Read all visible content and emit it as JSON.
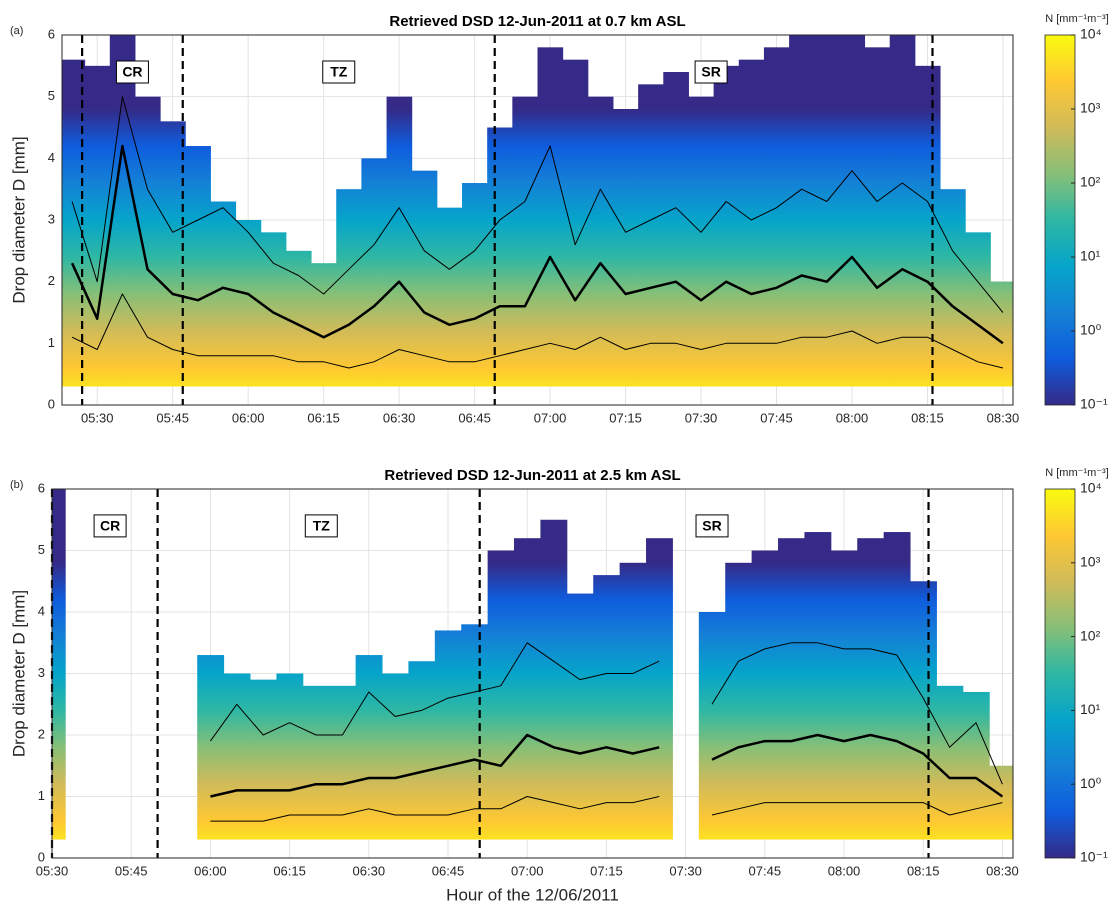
{
  "chart_data": [
    {
      "type": "heatmap",
      "panel_label": "(a)",
      "title": "Retrieved DSD 12-Jun-2011 at 0.7 km ASL",
      "ylabel": "Drop diameter D [mm]",
      "xlim": [
        "05:23",
        "08:32"
      ],
      "xticks": [
        "05:30",
        "05:45",
        "06:00",
        "06:15",
        "06:30",
        "06:45",
        "07:00",
        "07:15",
        "07:30",
        "07:45",
        "08:00",
        "08:15",
        "08:30"
      ],
      "ylim": [
        0,
        6
      ],
      "yticks": [
        0,
        1,
        2,
        3,
        4,
        5,
        6
      ],
      "grid": true,
      "min_diameter": 0.3,
      "x": [
        "05:25",
        "05:30",
        "05:35",
        "05:40",
        "05:45",
        "05:50",
        "05:55",
        "06:00",
        "06:05",
        "06:10",
        "06:15",
        "06:20",
        "06:25",
        "06:30",
        "06:35",
        "06:40",
        "06:45",
        "06:50",
        "06:55",
        "07:00",
        "07:05",
        "07:10",
        "07:15",
        "07:20",
        "07:25",
        "07:30",
        "07:35",
        "07:40",
        "07:45",
        "07:50",
        "07:55",
        "08:00",
        "08:05",
        "08:10",
        "08:15",
        "08:20",
        "08:25",
        "08:30"
      ],
      "max_diameter": [
        5.6,
        5.5,
        6.0,
        5.0,
        4.6,
        4.2,
        3.3,
        3.0,
        2.8,
        2.5,
        2.3,
        3.5,
        4.0,
        5.0,
        3.8,
        3.2,
        3.6,
        4.5,
        5.0,
        5.8,
        5.6,
        5.0,
        4.8,
        5.2,
        5.4,
        5.0,
        5.5,
        5.6,
        5.8,
        6.0,
        6.0,
        6.0,
        5.8,
        6.0,
        5.5,
        3.5,
        2.8,
        2.0
      ],
      "series": [
        {
          "line_width": 1,
          "color": "#000000",
          "values": [
            3.3,
            2.0,
            5.0,
            3.5,
            2.8,
            3.0,
            3.2,
            2.8,
            2.3,
            2.1,
            1.8,
            2.2,
            2.6,
            3.2,
            2.5,
            2.2,
            2.5,
            3.0,
            3.3,
            4.2,
            2.6,
            3.5,
            2.8,
            3.0,
            3.2,
            2.8,
            3.3,
            3.0,
            3.2,
            3.5,
            3.3,
            3.8,
            3.3,
            3.6,
            3.3,
            2.5,
            2.0,
            1.5
          ]
        },
        {
          "line_width": 2.5,
          "color": "#000000",
          "values": [
            2.3,
            1.4,
            4.2,
            2.2,
            1.8,
            1.7,
            1.9,
            1.8,
            1.5,
            1.3,
            1.1,
            1.3,
            1.6,
            2.0,
            1.5,
            1.3,
            1.4,
            1.6,
            1.6,
            2.4,
            1.7,
            2.3,
            1.8,
            1.9,
            2.0,
            1.7,
            2.0,
            1.8,
            1.9,
            2.1,
            2.0,
            2.4,
            1.9,
            2.2,
            2.0,
            1.6,
            1.3,
            1.0
          ]
        },
        {
          "line_width": 1,
          "color": "#000000",
          "values": [
            1.1,
            0.9,
            1.8,
            1.1,
            0.9,
            0.8,
            0.8,
            0.8,
            0.8,
            0.7,
            0.7,
            0.6,
            0.7,
            0.9,
            0.8,
            0.7,
            0.7,
            0.8,
            0.9,
            1.0,
            0.9,
            1.1,
            0.9,
            1.0,
            1.0,
            0.9,
            1.0,
            1.0,
            1.0,
            1.1,
            1.1,
            1.2,
            1.0,
            1.1,
            1.1,
            0.9,
            0.7,
            0.6
          ]
        }
      ],
      "vlines": [
        "05:27",
        "05:47",
        "06:49",
        "08:16"
      ],
      "annotations": [
        {
          "x": "05:37",
          "y": 5.4,
          "text": "CR"
        },
        {
          "x": "06:18",
          "y": 5.4,
          "text": "TZ"
        },
        {
          "x": "07:32",
          "y": 5.4,
          "text": "SR"
        }
      ],
      "colorbar": {
        "label": "N [mm⁻¹m⁻³]",
        "log": true,
        "ylim": [
          0.1,
          10000
        ],
        "yticks": [
          {
            "value": 0.1,
            "label": "10⁻¹"
          },
          {
            "value": 1,
            "label": "10⁰"
          },
          {
            "value": 10,
            "label": "10¹"
          },
          {
            "value": 100,
            "label": "10²"
          },
          {
            "value": 1000,
            "label": "10³"
          },
          {
            "value": 10000,
            "label": "10⁴"
          }
        ],
        "colors": [
          "#352a87",
          "#0f5cdd",
          "#1481d6",
          "#06a4ca",
          "#2eb7a4",
          "#87bf77",
          "#d1bb59",
          "#fec832",
          "#f9fb0e"
        ]
      }
    },
    {
      "type": "heatmap",
      "panel_label": "(b)",
      "title": "Retrieved DSD 12-Jun-2011 at 2.5 km ASL",
      "ylabel": "Drop diameter D [mm]",
      "xlabel": "Hour of the 12/06/2011",
      "xlim": [
        "05:30",
        "08:32"
      ],
      "xticks": [
        "05:30",
        "05:45",
        "06:00",
        "06:15",
        "06:30",
        "06:45",
        "07:00",
        "07:15",
        "07:30",
        "07:45",
        "08:00",
        "08:15",
        "08:30"
      ],
      "ylim": [
        0,
        6
      ],
      "yticks": [
        0,
        1,
        2,
        3,
        4,
        5,
        6
      ],
      "grid": true,
      "min_diameter": 0.3,
      "x": [
        "05:30",
        "05:35",
        "05:40",
        "05:45",
        "05:50",
        "05:55",
        "06:00",
        "06:05",
        "06:10",
        "06:15",
        "06:20",
        "06:25",
        "06:30",
        "06:35",
        "06:40",
        "06:45",
        "06:50",
        "06:55",
        "07:00",
        "07:05",
        "07:10",
        "07:15",
        "07:20",
        "07:25",
        "07:30",
        "07:35",
        "07:40",
        "07:45",
        "07:50",
        "07:55",
        "08:00",
        "08:05",
        "08:10",
        "08:15",
        "08:20",
        "08:25",
        "08:30"
      ],
      "max_diameter": [
        6.0,
        null,
        null,
        null,
        null,
        null,
        3.3,
        3.0,
        2.9,
        3.0,
        2.8,
        2.8,
        3.3,
        3.0,
        3.2,
        3.7,
        3.8,
        5.0,
        5.2,
        5.5,
        4.3,
        4.6,
        4.8,
        5.2,
        null,
        4.0,
        4.8,
        5.0,
        5.2,
        5.3,
        5.0,
        5.2,
        5.3,
        4.5,
        2.8,
        2.7,
        1.5
      ],
      "series": [
        {
          "line_width": 1,
          "color": "#000000",
          "values": [
            null,
            null,
            null,
            null,
            null,
            null,
            1.9,
            2.5,
            2.0,
            2.2,
            2.0,
            2.0,
            2.7,
            2.3,
            2.4,
            2.6,
            2.7,
            2.8,
            3.5,
            3.2,
            2.9,
            3.0,
            3.0,
            3.2,
            null,
            2.5,
            3.2,
            3.4,
            3.5,
            3.5,
            3.4,
            3.4,
            3.3,
            2.6,
            1.8,
            2.2,
            1.2
          ]
        },
        {
          "line_width": 2.5,
          "color": "#000000",
          "values": [
            null,
            null,
            null,
            null,
            null,
            null,
            1.0,
            1.1,
            1.1,
            1.1,
            1.2,
            1.2,
            1.3,
            1.3,
            1.4,
            1.5,
            1.6,
            1.5,
            2.0,
            1.8,
            1.7,
            1.8,
            1.7,
            1.8,
            null,
            1.6,
            1.8,
            1.9,
            1.9,
            2.0,
            1.9,
            2.0,
            1.9,
            1.7,
            1.3,
            1.3,
            1.0
          ]
        },
        {
          "line_width": 1,
          "color": "#000000",
          "values": [
            null,
            null,
            null,
            null,
            null,
            null,
            0.6,
            0.6,
            0.6,
            0.7,
            0.7,
            0.7,
            0.8,
            0.7,
            0.7,
            0.7,
            0.8,
            0.8,
            1.0,
            0.9,
            0.8,
            0.9,
            0.9,
            1.0,
            null,
            0.7,
            0.8,
            0.9,
            0.9,
            0.9,
            0.9,
            0.9,
            0.9,
            0.9,
            0.7,
            0.8,
            0.9
          ]
        }
      ],
      "vlines": [
        "05:30",
        "05:50",
        "06:51",
        "08:16"
      ],
      "annotations": [
        {
          "x": "05:41",
          "y": 5.4,
          "text": "CR"
        },
        {
          "x": "06:21",
          "y": 5.4,
          "text": "TZ"
        },
        {
          "x": "07:35",
          "y": 5.4,
          "text": "SR"
        }
      ],
      "colorbar": {
        "label": "N [mm⁻¹m⁻³]",
        "log": true,
        "ylim": [
          0.1,
          10000
        ],
        "yticks": [
          {
            "value": 0.1,
            "label": "10⁻¹"
          },
          {
            "value": 1,
            "label": "10⁰"
          },
          {
            "value": 10,
            "label": "10¹"
          },
          {
            "value": 100,
            "label": "10²"
          },
          {
            "value": 1000,
            "label": "10³"
          },
          {
            "value": 10000,
            "label": "10⁴"
          }
        ],
        "colors": [
          "#352a87",
          "#0f5cdd",
          "#1481d6",
          "#06a4ca",
          "#2eb7a4",
          "#87bf77",
          "#d1bb59",
          "#fec832",
          "#f9fb0e"
        ]
      }
    }
  ]
}
